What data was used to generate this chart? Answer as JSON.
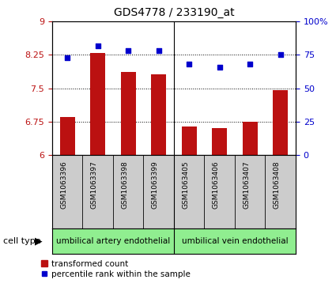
{
  "title": "GDS4778 / 233190_at",
  "samples": [
    "GSM1063396",
    "GSM1063397",
    "GSM1063398",
    "GSM1063399",
    "GSM1063405",
    "GSM1063406",
    "GSM1063407",
    "GSM1063408"
  ],
  "bar_values": [
    6.85,
    8.3,
    7.87,
    7.82,
    6.64,
    6.6,
    6.75,
    7.45
  ],
  "scatter_values": [
    73,
    82,
    78,
    78,
    68,
    66,
    68,
    75
  ],
  "ylim_left": [
    6,
    9
  ],
  "ylim_right": [
    0,
    100
  ],
  "yticks_left": [
    6,
    6.75,
    7.5,
    8.25,
    9
  ],
  "yticks_right": [
    0,
    25,
    50,
    75,
    100
  ],
  "ytick_labels_left": [
    "6",
    "6.75",
    "7.5",
    "8.25",
    "9"
  ],
  "ytick_labels_right": [
    "0",
    "25",
    "50",
    "75",
    "100%"
  ],
  "bar_color": "#bb1111",
  "scatter_color": "#0000cc",
  "grid_color": "#000000",
  "group1_label": "umbilical artery endothelial",
  "group2_label": "umbilical vein endothelial",
  "group1_indices": [
    0,
    1,
    2,
    3
  ],
  "group2_indices": [
    4,
    5,
    6,
    7
  ],
  "cell_type_label": "cell type",
  "legend_bar_label": "transformed count",
  "legend_scatter_label": "percentile rank within the sample",
  "bar_width": 0.5,
  "tick_area_color": "#cccccc",
  "group_area_color": "#90ee90",
  "fig_width": 4.25,
  "fig_height": 3.63
}
